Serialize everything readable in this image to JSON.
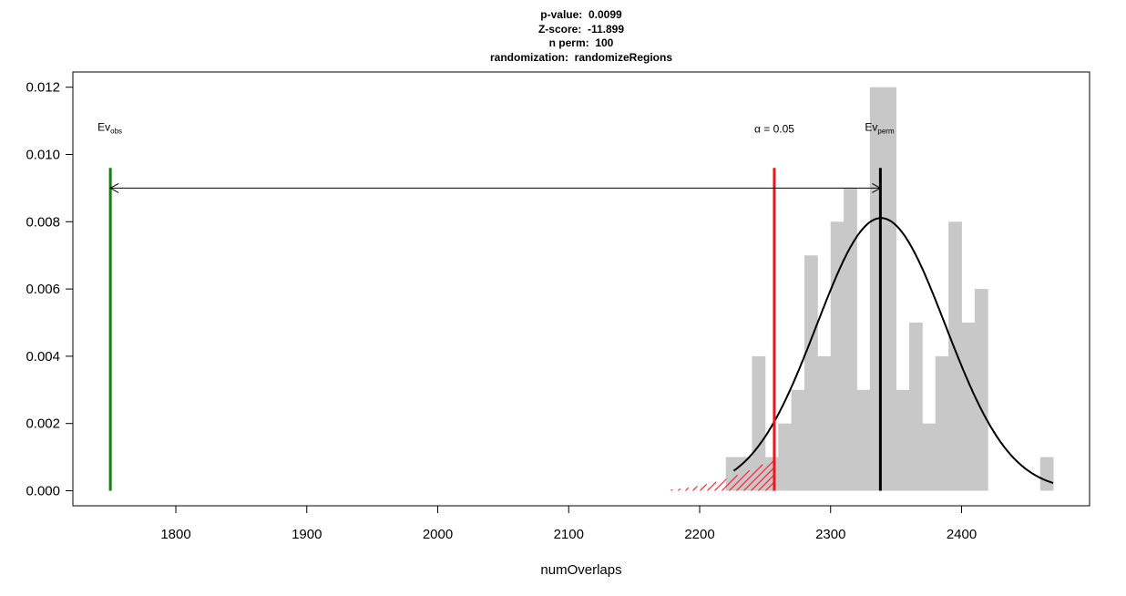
{
  "title_lines": [
    "p-value:  0.0099",
    "Z-score:  -11.899",
    "n perm:  100",
    "randomization:  randomizeRegions"
  ],
  "chart_data": {
    "type": "histogram",
    "xlabel": "numOverlaps",
    "ylabel": "",
    "xlim": [
      1740,
      2475
    ],
    "ylim": [
      0,
      0.0125
    ],
    "x_ticks": [
      1800,
      1900,
      2000,
      2100,
      2200,
      2300,
      2400
    ],
    "y_ticks": [
      0.0,
      0.002,
      0.004,
      0.006,
      0.008,
      0.01,
      0.012
    ],
    "y_tick_labels": [
      "0.000",
      "0.002",
      "0.004",
      "0.006",
      "0.008",
      "0.010",
      "0.012"
    ],
    "grid": false,
    "bin_width": 10,
    "bins": [
      {
        "x0": 2220,
        "x1": 2230,
        "density": 0.001
      },
      {
        "x0": 2230,
        "x1": 2240,
        "density": 0.001
      },
      {
        "x0": 2240,
        "x1": 2250,
        "density": 0.004
      },
      {
        "x0": 2250,
        "x1": 2260,
        "density": 0.001
      },
      {
        "x0": 2260,
        "x1": 2270,
        "density": 0.002
      },
      {
        "x0": 2270,
        "x1": 2280,
        "density": 0.003
      },
      {
        "x0": 2280,
        "x1": 2290,
        "density": 0.007
      },
      {
        "x0": 2290,
        "x1": 2300,
        "density": 0.004
      },
      {
        "x0": 2300,
        "x1": 2310,
        "density": 0.008
      },
      {
        "x0": 2310,
        "x1": 2320,
        "density": 0.009
      },
      {
        "x0": 2320,
        "x1": 2330,
        "density": 0.003
      },
      {
        "x0": 2330,
        "x1": 2340,
        "density": 0.012
      },
      {
        "x0": 2340,
        "x1": 2350,
        "density": 0.012
      },
      {
        "x0": 2350,
        "x1": 2360,
        "density": 0.003
      },
      {
        "x0": 2360,
        "x1": 2370,
        "density": 0.005
      },
      {
        "x0": 2370,
        "x1": 2380,
        "density": 0.002
      },
      {
        "x0": 2380,
        "x1": 2390,
        "density": 0.004
      },
      {
        "x0": 2390,
        "x1": 2400,
        "density": 0.008
      },
      {
        "x0": 2400,
        "x1": 2410,
        "density": 0.005
      },
      {
        "x0": 2410,
        "x1": 2420,
        "density": 0.006
      },
      {
        "x0": 2420,
        "x1": 2460,
        "density": 0.0
      },
      {
        "x0": 2460,
        "x1": 2470,
        "density": 0.001
      }
    ],
    "normal_curve": {
      "mean": 2338.5,
      "sd": 49.2,
      "x_range": [
        2226,
        2470
      ]
    },
    "alpha_region": {
      "x_range": [
        2178,
        2257
      ],
      "color": "#e8191e"
    },
    "vlines": [
      {
        "name": "Ev_obs",
        "x": 1750,
        "y_top": 0.0096,
        "color": "#1a7a1a"
      },
      {
        "name": "alpha",
        "x": 2257,
        "y_top": 0.0096,
        "color": "#e8191e"
      },
      {
        "name": "Ev_perm",
        "x": 2338,
        "y_top": 0.0096,
        "color": "#000000"
      }
    ],
    "arrow": {
      "x0": 1750,
      "x1": 2338,
      "y": 0.009
    },
    "labels": {
      "ev_obs_main": "Ev",
      "ev_obs_sub": "obs",
      "alpha_text": "α = 0.05",
      "ev_perm_main": "Ev",
      "ev_perm_sub": "perm"
    },
    "label_y": 0.0107,
    "colors": {
      "hist": "#c8c8c8",
      "curve": "#000000"
    }
  }
}
